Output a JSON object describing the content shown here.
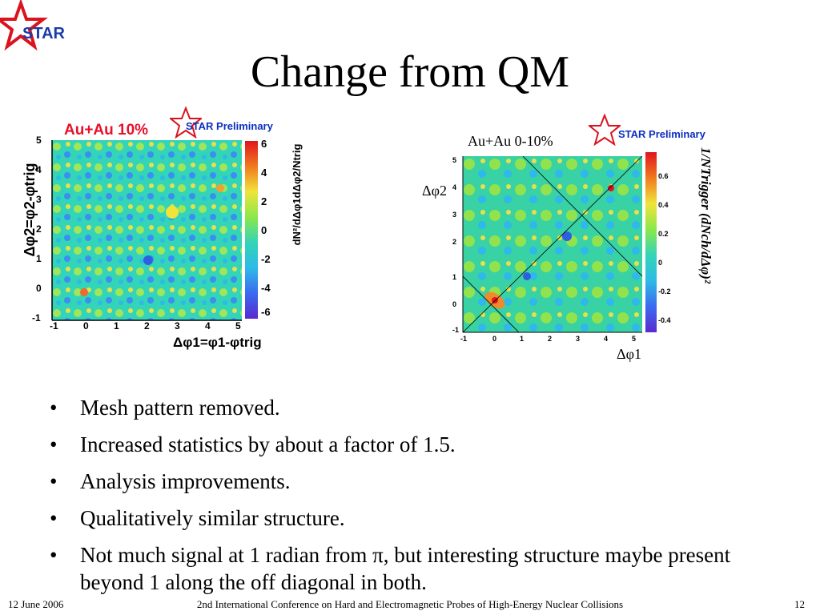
{
  "slide": {
    "logo_text": "STAR",
    "title": "Change from QM"
  },
  "left_plot": {
    "label_system": "Au+Au 10%",
    "label_prelim": "STAR Preliminary",
    "y_axis_label": "Δφ2=φ2-φtrig",
    "x_axis_label": "Δφ1=φ1-φtrig",
    "z_axis_label": "dN²/dΔφ1dΔφ2/Ntrig",
    "x_ticks": [
      "-1",
      "0",
      "1",
      "2",
      "3",
      "4",
      "5"
    ],
    "y_ticks": [
      "5",
      "4",
      "3",
      "2",
      "1",
      "0",
      "-1"
    ],
    "z_ticks": [
      "6",
      "4",
      "2",
      "0",
      "-2",
      "-4",
      "-6"
    ]
  },
  "right_plot": {
    "label_system": "Au+Au 0-10%",
    "label_prelim": "STAR Preliminary",
    "y_axis_label": "Δφ2",
    "x_axis_label": "Δφ1",
    "z_axis_label": "1/NTrigger (dNch/dΔφ)²",
    "x_ticks": [
      "-1",
      "0",
      "1",
      "2",
      "3",
      "4",
      "5"
    ],
    "y_ticks": [
      "5",
      "4",
      "3",
      "2",
      "1",
      "0",
      "-1"
    ],
    "z_ticks": [
      "0.6",
      "0.4",
      "0.2",
      "0",
      "-0.2",
      "-0.4"
    ]
  },
  "bullets": [
    "Mesh pattern removed.",
    "Increased statistics by about a factor of 1.5.",
    "Analysis improvements.",
    "Qualitatively similar structure.",
    "Not much signal at 1 radian from π, but interesting structure maybe present beyond 1 along the off diagonal in both."
  ],
  "footer": {
    "date": "12 June 2006",
    "conference": "2nd International Conference on Hard and Electromagnetic Probes of High-Energy Nuclear Collisions",
    "page": "12"
  }
}
